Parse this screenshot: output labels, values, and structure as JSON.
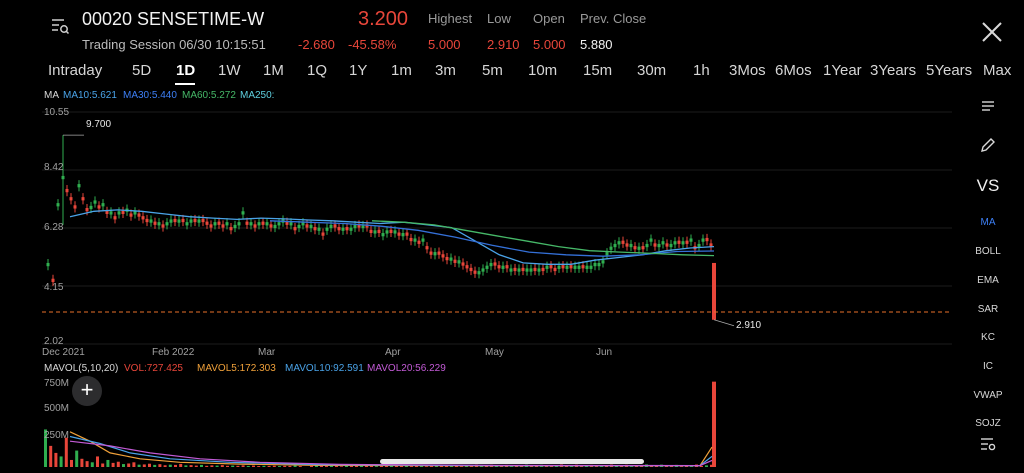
{
  "header": {
    "title": "00020 SENSETIME-W",
    "price": "3.200",
    "session": "Trading Session 06/30 10:15:51",
    "change": "-2.680",
    "change_pct": "-45.58%",
    "stats": {
      "highest_label": "Highest",
      "highest": "5.000",
      "low_label": "Low",
      "low": "2.910",
      "open_label": "Open",
      "open": "5.000",
      "prev_close_label": "Prev. Close",
      "prev_close": "5.880"
    }
  },
  "tabs": [
    "Intraday",
    "5D",
    "1D",
    "1W",
    "1M",
    "1Q",
    "1Y",
    "1m",
    "3m",
    "5m",
    "10m",
    "15m",
    "30m",
    "1h",
    "3Mos",
    "6Mos",
    "1Year",
    "3Years",
    "5Years",
    "Max"
  ],
  "active_tab": "1D",
  "ma_legend": {
    "ma": "MA",
    "ma10": "MA10:5.621",
    "ma30": "MA30:5.440",
    "ma60": "MA60:5.272",
    "ma250": "MA250:"
  },
  "price_axis": [
    "10.55",
    "8.42",
    "6.28",
    "4.15",
    "2.02"
  ],
  "date_axis": [
    "Dec 2021",
    "Feb 2022",
    "Mar",
    "Apr",
    "May",
    "Jun"
  ],
  "annotations": {
    "high": "9.700",
    "low": "2.910"
  },
  "vol_legend": {
    "title": "MAVOL(5,10,20)",
    "vol": "VOL:727.425",
    "mavol5": "MAVOL5:172.303",
    "mavol10": "MAVOL10:92.591",
    "mavol20": "MAVOL20:56.229"
  },
  "vol_axis": [
    "750M",
    "500M",
    "250M"
  ],
  "side_tools": [
    "MA",
    "BOLL",
    "EMA",
    "SAR",
    "KC",
    "IC",
    "VWAP",
    "SOJZ"
  ],
  "side_vs": "VS",
  "plus": "+",
  "colors": {
    "up": "#2fae4f",
    "down": "#e8463a",
    "ma10": "#4aa3e8",
    "ma30": "#3470d8",
    "ma60": "#46b868",
    "mavol5": "#f0a13a",
    "mavol10": "#4aa3e8",
    "mavol20": "#c35bd6"
  },
  "chart_data": {
    "type": "candlestick",
    "series": [
      {
        "name": "MA10",
        "values": [
          6.7,
          6.9,
          6.95,
          6.9,
          6.8,
          6.7,
          6.65,
          6.6,
          6.65,
          6.62,
          6.58,
          6.55,
          6.5,
          6.45,
          6.5,
          6.4,
          6.3,
          5.8,
          5.3,
          5.0,
          4.95,
          4.95,
          5.1,
          5.2,
          5.3,
          5.45,
          5.55,
          5.6
        ]
      },
      {
        "name": "MA30",
        "values": [
          6.55,
          6.5,
          6.45,
          6.35,
          6.2,
          5.95,
          5.65,
          5.4,
          5.3,
          5.25,
          5.3,
          5.42,
          5.44
        ]
      },
      {
        "name": "MA60",
        "values": [
          6.55,
          6.5,
          6.4,
          6.2,
          6.0,
          5.8,
          5.6,
          5.45,
          5.4,
          5.35,
          5.3,
          5.27
        ]
      }
    ],
    "ylim": [
      2.02,
      10.55
    ],
    "volume_ylim": [
      0,
      750
    ]
  }
}
